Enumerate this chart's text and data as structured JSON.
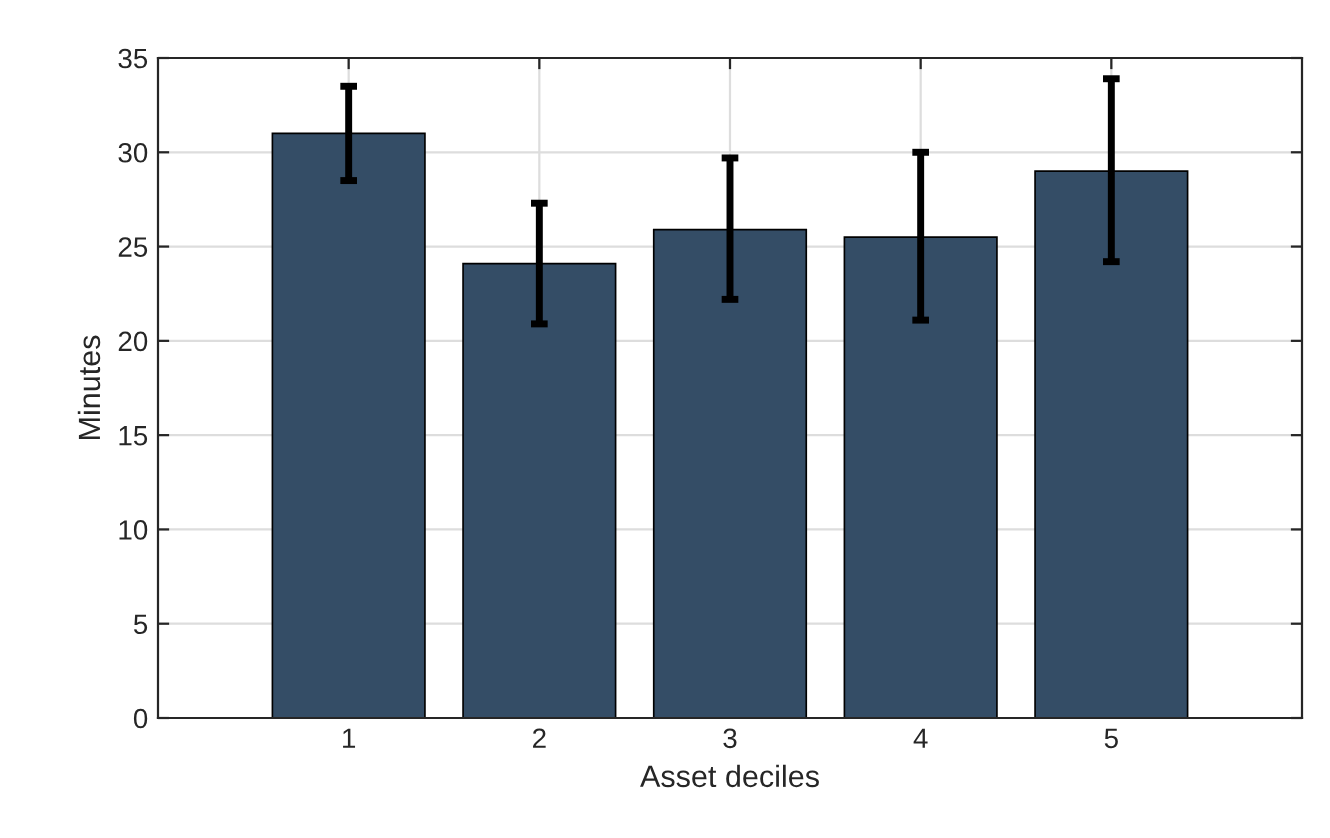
{
  "chart_data": {
    "type": "bar",
    "xlabel": "Asset deciles",
    "ylabel": "Minutes",
    "x": [
      1,
      2,
      3,
      4,
      5
    ],
    "values": [
      31.0,
      24.1,
      25.9,
      25.5,
      29.0
    ],
    "errors": [
      [
        28.5,
        33.5
      ],
      [
        20.9,
        27.3
      ],
      [
        22.2,
        29.7
      ],
      [
        21.1,
        30.0
      ],
      [
        24.2,
        33.9
      ]
    ],
    "color": "#344d66",
    "xlim": [
      0,
      6
    ],
    "xticks": [
      1,
      2,
      3,
      4,
      5
    ],
    "ylim": [
      0,
      35
    ],
    "yticks": [
      0,
      5,
      10,
      15,
      20,
      25,
      30,
      35
    ],
    "grid": true
  }
}
